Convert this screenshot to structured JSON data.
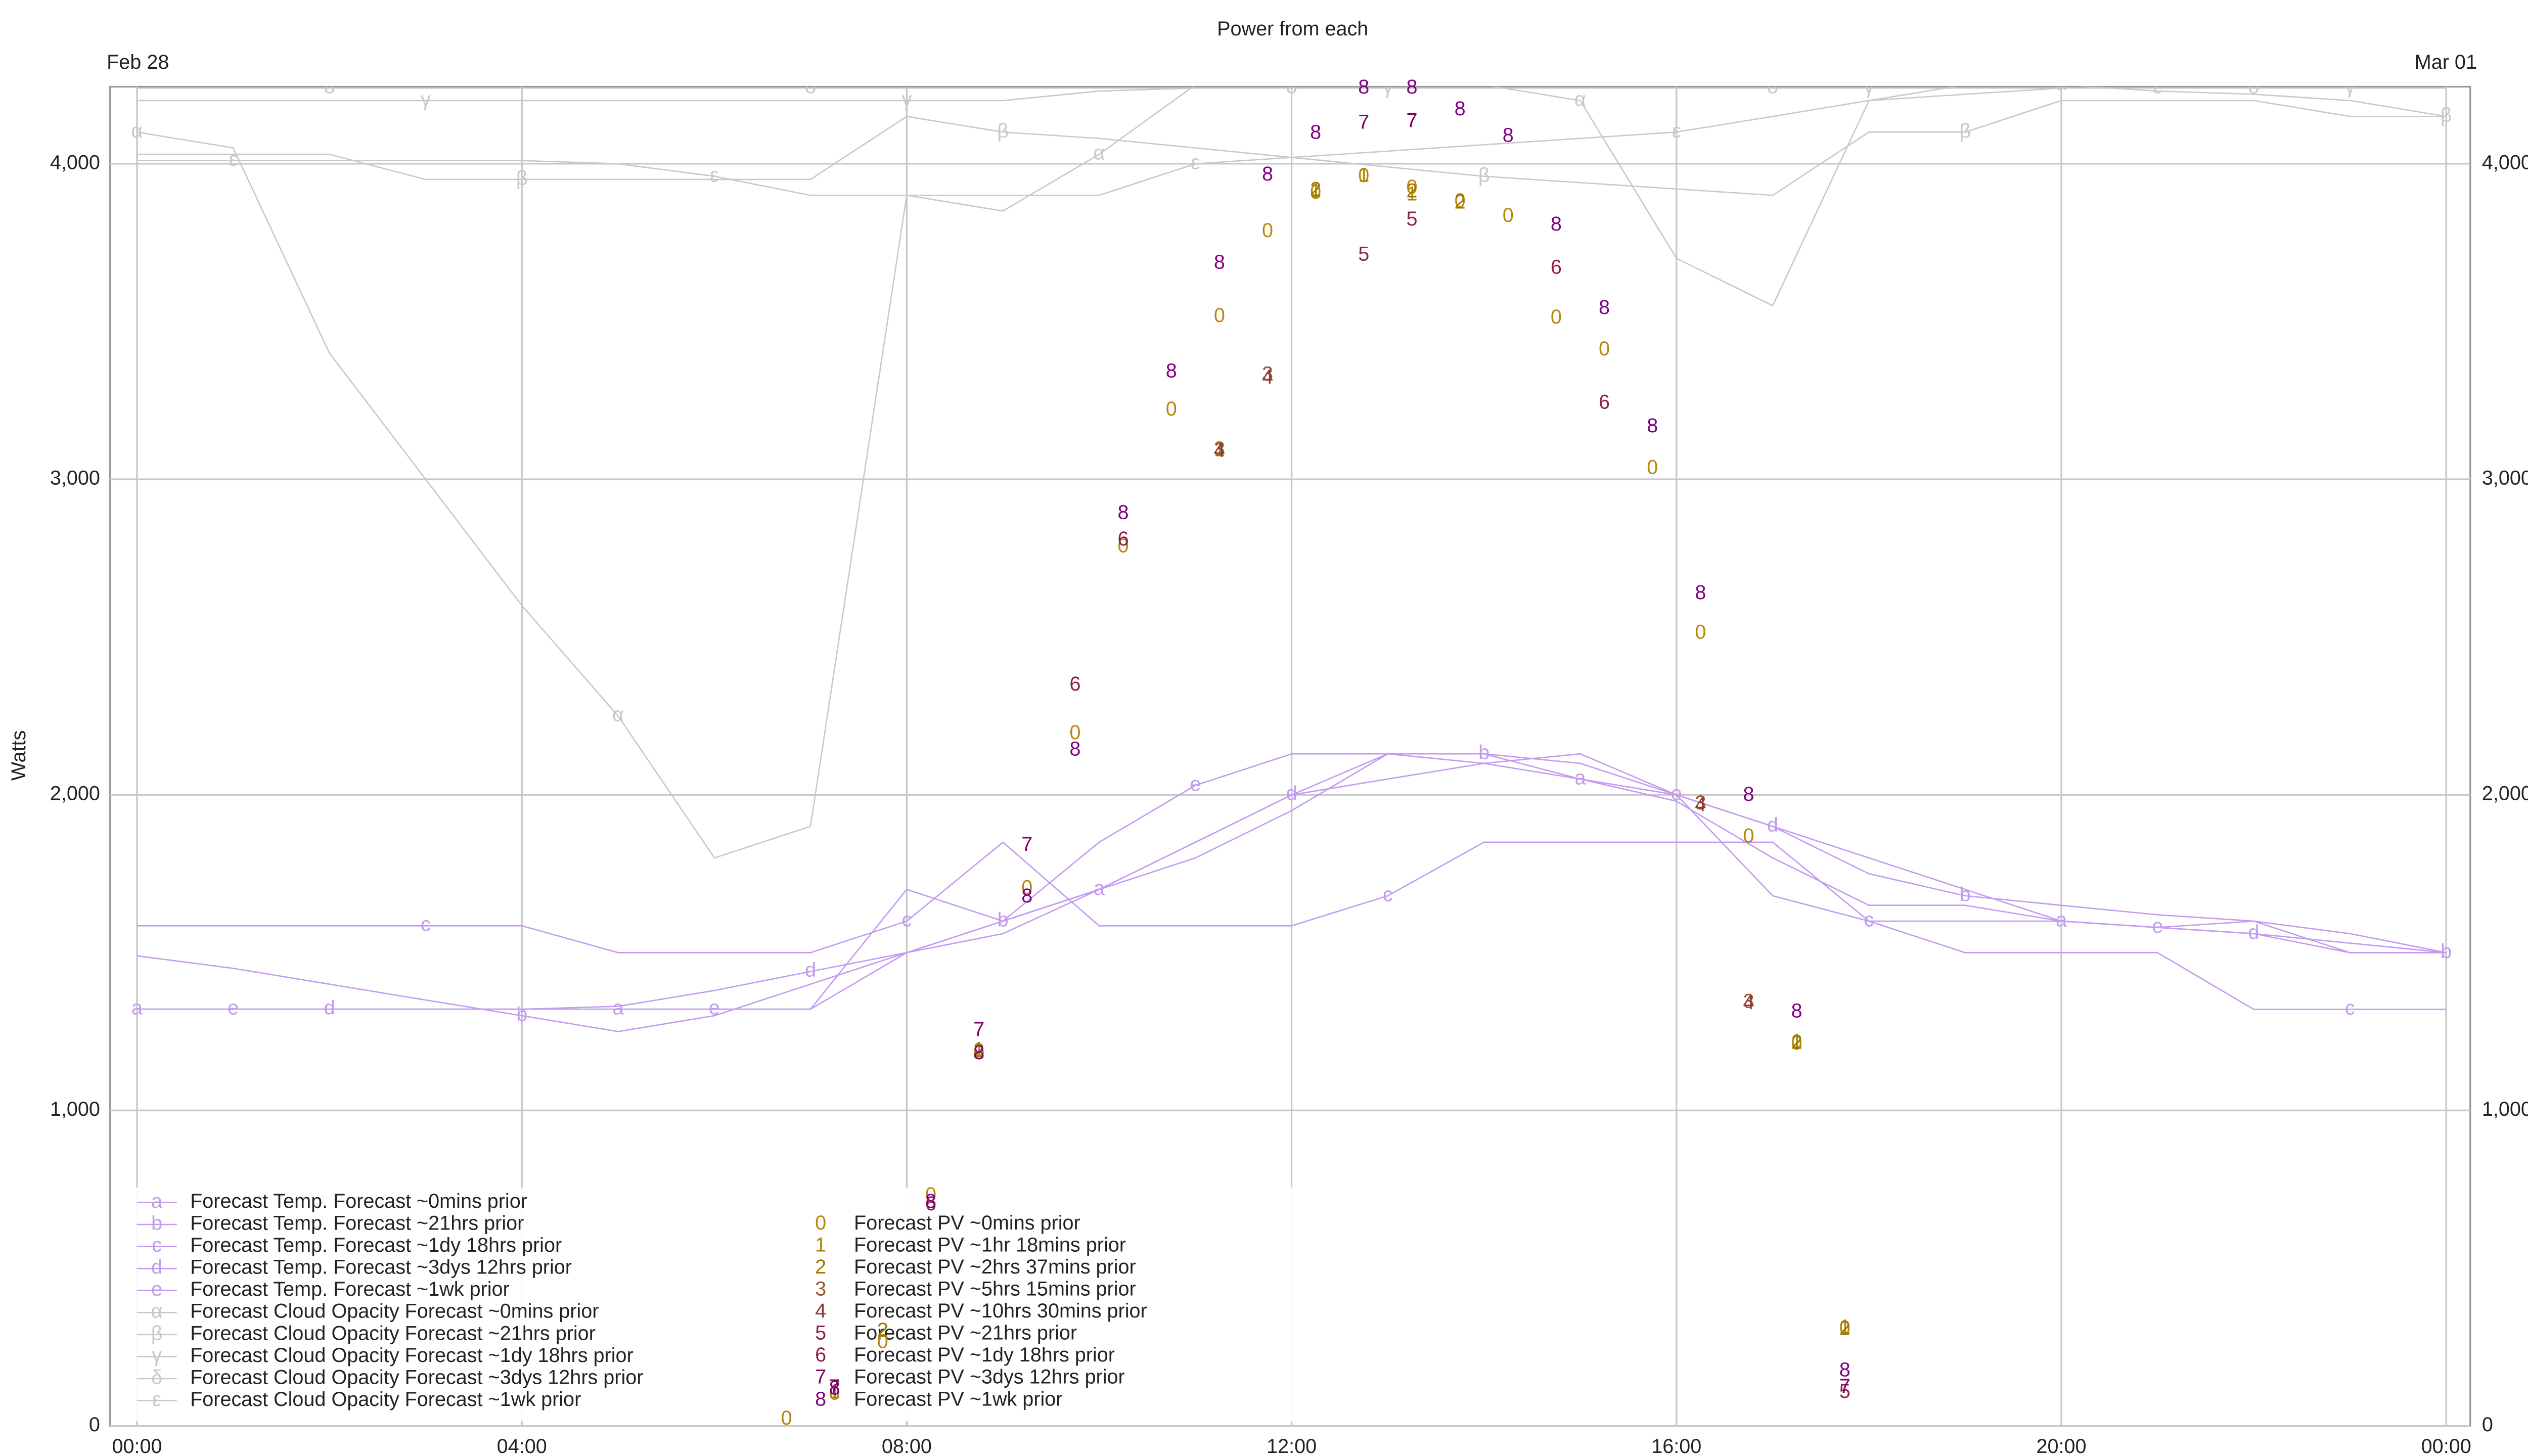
{
  "chart_data": {
    "type": "line",
    "title": "Power from each",
    "ylabel": "Watts",
    "date_labels": [
      "Feb 28",
      "Mar 01"
    ],
    "xlim": [
      -0.28,
      24.25
    ],
    "xticks": [
      {
        "value": 0,
        "label": "00:00"
      },
      {
        "value": 4,
        "label": "04:00"
      },
      {
        "value": 8,
        "label": "08:00"
      },
      {
        "value": 12,
        "label": "12:00"
      },
      {
        "value": 16,
        "label": "16:00"
      },
      {
        "value": 20,
        "label": "20:00"
      },
      {
        "value": 24,
        "label": "00:00"
      }
    ],
    "ylim": [
      0,
      4244
    ],
    "yticks": [
      0,
      {
        "value": 1000,
        "label": "1,000"
      },
      {
        "value": 2000,
        "label": "2,000"
      },
      {
        "value": 3000,
        "label": "3,000"
      },
      {
        "value": 4000,
        "label": "4,000"
      }
    ],
    "grid": true,
    "x": [
      0,
      1,
      2,
      3,
      4,
      5,
      6,
      7,
      8,
      9,
      10,
      11,
      12,
      13,
      14,
      15,
      16,
      17,
      18,
      19,
      20,
      21,
      22,
      23,
      24
    ],
    "series": [
      {
        "type": "line",
        "name": "Forecast Temp. Forecast ~0mins prior",
        "symbol": "a",
        "color": "#c49af0",
        "values": [
          1321,
          1321,
          1321,
          1321,
          1321,
          1321,
          1321,
          1321,
          1500,
          1600,
          1700,
          1850,
          2000,
          2130,
          2130,
          2050,
          1980,
          1800,
          1650,
          1650,
          1600,
          1580,
          1560,
          1530,
          1500
        ]
      },
      {
        "type": "line",
        "name": "Forecast Temp. Forecast ~21hrs prior",
        "symbol": "b",
        "color": "#c49af0",
        "values": [
          1490,
          1450,
          1400,
          1350,
          1300,
          1250,
          1300,
          1400,
          1500,
          1600,
          1700,
          1800,
          1950,
          2130,
          2130,
          2100,
          2000,
          1900,
          1750,
          1680,
          1650,
          1620,
          1600,
          1560,
          1500
        ]
      },
      {
        "type": "line",
        "name": "Forecast Temp. Forecast ~1dy 18hrs prior",
        "symbol": "c",
        "color": "#c49af0",
        "values": [
          1585,
          1585,
          1585,
          1585,
          1585,
          1500,
          1500,
          1500,
          1600,
          1850,
          1585,
          1585,
          1585,
          1680,
          1850,
          1850,
          1850,
          1850,
          1600,
          1500,
          1500,
          1500,
          1320,
          1320,
          1320
        ]
      },
      {
        "type": "line",
        "name": "Forecast Temp. Forecast ~3dys 12hrs prior",
        "symbol": "d",
        "color": "#c49af0",
        "values": [
          1321,
          1321,
          1321,
          1321,
          1321,
          1330,
          1380,
          1440,
          1500,
          1560,
          1700,
          1850,
          2000,
          2050,
          2100,
          2130,
          2000,
          1900,
          1800,
          1700,
          1600,
          1580,
          1560,
          1500,
          1500
        ]
      },
      {
        "type": "line",
        "name": "Forecast Temp. Forecast ~1wk prior",
        "symbol": "e",
        "color": "#c49af0",
        "values": [
          1321,
          1321,
          1321,
          1321,
          1321,
          1321,
          1321,
          1321,
          1700,
          1600,
          1850,
          2030,
          2130,
          2130,
          2100,
          2050,
          2000,
          1680,
          1600,
          1600,
          1600,
          1580,
          1600,
          1500,
          1500
        ]
      },
      {
        "type": "line",
        "name": "Forecast Cloud Opacity Forecast ~0mins prior",
        "symbol": "α",
        "color": "#c8c8c8",
        "values": [
          4100,
          4050,
          3400,
          3000,
          2600,
          2250,
          1800,
          1900,
          3900,
          3850,
          4030,
          4250,
          4250,
          4250,
          4250,
          4200,
          3700,
          3550,
          4200,
          4250,
          4250,
          4230,
          4220,
          4200,
          4150
        ]
      },
      {
        "type": "line",
        "name": "Forecast Cloud Opacity Forecast ~21hrs prior",
        "symbol": "β",
        "color": "#c8c8c8",
        "values": [
          4030,
          4030,
          4030,
          3950,
          3950,
          3950,
          3950,
          3950,
          4150,
          4100,
          4080,
          4050,
          4020,
          3990,
          3960,
          3940,
          3920,
          3900,
          4100,
          4100,
          4200,
          4200,
          4200,
          4150,
          4150
        ]
      },
      {
        "type": "line",
        "name": "Forecast Cloud Opacity Forecast ~1dy 18hrs prior",
        "symbol": "γ",
        "color": "#c8c8c8",
        "values": [
          4200,
          4200,
          4200,
          4200,
          4200,
          4200,
          4200,
          4200,
          4200,
          4200,
          4230,
          4240,
          4240,
          4240,
          4240,
          4240,
          4240,
          4240,
          4240,
          4240,
          4240,
          4240,
          4240,
          4240,
          4240
        ]
      },
      {
        "type": "line",
        "name": "Forecast Cloud Opacity Forecast ~3dys 12hrs prior",
        "symbol": "δ",
        "color": "#c8c8c8",
        "values": [
          4240,
          4240,
          4240,
          4240,
          4240,
          4240,
          4240,
          4240,
          4240,
          4240,
          4240,
          4240,
          4240,
          4240,
          4240,
          4240,
          4240,
          4240,
          4240,
          4240,
          4240,
          4240,
          4240,
          4240,
          4240
        ]
      },
      {
        "type": "line",
        "name": "Forecast Cloud Opacity Forecast ~1wk prior",
        "symbol": "ε",
        "color": "#c8c8c8",
        "values": [
          4010,
          4010,
          4010,
          4010,
          4010,
          4000,
          3960,
          3900,
          3900,
          3900,
          3900,
          4000,
          4020,
          4040,
          4060,
          4080,
          4100,
          4150,
          4200,
          4220,
          4240,
          4240,
          4240,
          4240,
          4240
        ]
      },
      {
        "type": "scatter",
        "name": "Forecast PV ~0mins prior",
        "symbol": "0",
        "color": "#b8860b",
        "x": [
          6.75,
          7.25,
          7.75,
          8.25,
          8.75,
          9.25,
          9.75,
          10.25,
          10.75,
          11.25,
          11.75,
          12.25,
          12.75,
          13.25,
          13.75,
          14.25,
          14.75,
          15.25,
          15.75,
          16.25,
          16.75,
          17.25,
          17.75
        ],
        "values": [
          21,
          100,
          264,
          729,
          1179,
          1702,
          2193,
          2785,
          3219,
          3515,
          3784,
          3906,
          3959,
          3922,
          3879,
          3832,
          3510,
          3409,
          3034,
          2511,
          1866,
          1210,
          307
        ]
      },
      {
        "type": "scatter",
        "name": "Forecast PV ~1hr 18mins prior",
        "symbol": "1",
        "color": "#a58a00",
        "x": [
          7.25,
          8.75,
          11.25,
          12.25,
          12.75,
          13.25,
          17.25,
          17.75
        ],
        "values": [
          105,
          1190,
          3090,
          3910,
          3960,
          3900,
          1215,
          310
        ]
      },
      {
        "type": "scatter",
        "name": "Forecast PV ~2hrs 37mins prior",
        "symbol": "2",
        "color": "#a07800",
        "x": [
          7.75,
          8.75,
          12.25,
          13.25,
          13.75,
          17.25,
          17.75
        ],
        "values": [
          300,
          1185,
          3915,
          3910,
          3875,
          1212,
          305
        ]
      },
      {
        "type": "scatter",
        "name": "Forecast PV ~5hrs 15mins prior",
        "symbol": "3",
        "color": "#a0522d",
        "x": [
          11.25,
          11.75,
          16.25,
          16.75
        ],
        "values": [
          3092,
          3330,
          1971,
          1342
        ]
      },
      {
        "type": "scatter",
        "name": "Forecast PV ~10hrs 30mins prior",
        "symbol": "4",
        "color": "#8b3a3a",
        "x": [
          11.25,
          11.75,
          16.25,
          16.75
        ],
        "values": [
          3088,
          3320,
          1965,
          1338
        ]
      },
      {
        "type": "scatter",
        "name": "Forecast PV ~21hrs prior",
        "symbol": "5",
        "color": "#8b2252",
        "x": [
          12.75,
          13.25,
          17.75
        ],
        "values": [
          3710,
          3821,
          106
        ]
      },
      {
        "type": "scatter",
        "name": "Forecast PV ~1dy 18hrs prior",
        "symbol": "6",
        "color": "#8b1c4c",
        "x": [
          8.25,
          9.75,
          10.25,
          14.75,
          15.25
        ],
        "values": [
          700,
          2347,
          2807,
          3668,
          3240
        ]
      },
      {
        "type": "scatter",
        "name": "Forecast PV ~3dys 12hrs prior",
        "symbol": "7",
        "color": "#800060",
        "x": [
          7.25,
          8.75,
          9.25,
          12.75,
          13.25,
          17.75
        ],
        "values": [
          120,
          1253,
          1839,
          4128,
          4133,
          122
        ]
      },
      {
        "type": "scatter",
        "name": "Forecast PV ~1wk prior",
        "symbol": "8",
        "color": "#800080",
        "x": [
          7.25,
          8.25,
          8.75,
          9.25,
          9.75,
          10.25,
          10.75,
          11.25,
          11.75,
          12.25,
          12.75,
          13.25,
          13.75,
          14.25,
          14.75,
          15.25,
          15.75,
          16.25,
          16.75,
          17.25,
          17.75
        ],
        "values": [
          116,
          708,
          1179,
          1676,
          2141,
          2891,
          3340,
          3684,
          3964,
          4096,
          4239,
          4239,
          4170,
          4086,
          3805,
          3541,
          3166,
          2637,
          1998,
          1311,
          174
        ]
      }
    ]
  }
}
